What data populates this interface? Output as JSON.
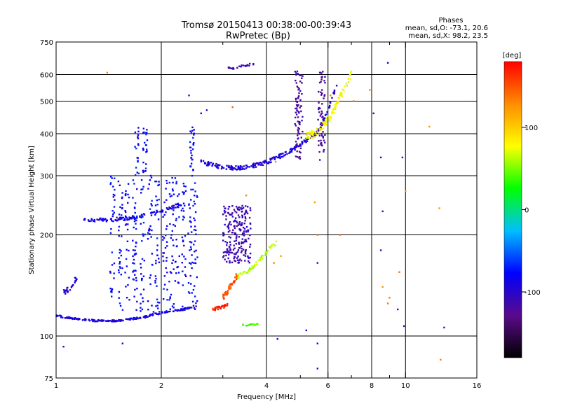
{
  "chart_data": {
    "type": "scatter",
    "title": "Tromsø 20150413 00:38:00-00:39:43",
    "subtitle": "RwPretec (Bp)",
    "phases": {
      "header": "Phases",
      "o_line": "mean, sd,O: -73.1, 20.6",
      "x_line": "mean, sd,X:  98.2, 23.5"
    },
    "xlabel": "Frequency [MHz]",
    "ylabel": "Stationary phase Virtual Height [km]",
    "x_scale": "log",
    "y_scale": "log",
    "xlim": [
      1,
      16
    ],
    "ylim": [
      75,
      750
    ],
    "x_ticks": [
      {
        "value": 1,
        "label": "1"
      },
      {
        "value": 2,
        "label": "2"
      },
      {
        "value": 4,
        "label": "4"
      },
      {
        "value": 6,
        "label": "6"
      },
      {
        "value": 8,
        "label": "8"
      },
      {
        "value": 10,
        "label": "10"
      },
      {
        "value": 16,
        "label": "16"
      }
    ],
    "x_minor": [
      3,
      5,
      7,
      9
    ],
    "x_grid": [
      2,
      4,
      6,
      8,
      10
    ],
    "y_ticks": [
      {
        "value": 75,
        "label": "75"
      },
      {
        "value": 100,
        "label": "100"
      },
      {
        "value": 200,
        "label": "200"
      },
      {
        "value": 300,
        "label": "300"
      },
      {
        "value": 400,
        "label": "400"
      },
      {
        "value": 500,
        "label": "500"
      },
      {
        "value": 600,
        "label": "600"
      },
      {
        "value": 750,
        "label": "750"
      }
    ],
    "y_grid": [
      100,
      200,
      300,
      400,
      500,
      600
    ],
    "grid": true,
    "colorbar": {
      "label": "[deg]",
      "range": [
        -180,
        180
      ],
      "ticks": [
        {
          "value": 100,
          "label": "100"
        },
        {
          "value": 0,
          "label": "0"
        },
        {
          "value": -100,
          "label": "-100"
        }
      ],
      "colors": [
        "#000000",
        "#5a0a8a",
        "#0000ff",
        "#00bfff",
        "#00ff00",
        "#ffff00",
        "#ff8c00",
        "#ff0000"
      ]
    },
    "series": [
      {
        "trace_type": "curve",
        "phase": -90,
        "points": [
          [
            1.0,
            115
          ],
          [
            1.05,
            114
          ],
          [
            1.1,
            113
          ],
          [
            1.2,
            112
          ],
          [
            1.3,
            111
          ],
          [
            1.4,
            111
          ],
          [
            1.5,
            111
          ],
          [
            1.6,
            112
          ],
          [
            1.7,
            113
          ],
          [
            1.8,
            114
          ],
          [
            1.9,
            116
          ],
          [
            2.0,
            117
          ],
          [
            2.1,
            118
          ],
          [
            2.2,
            119
          ],
          [
            2.3,
            120
          ],
          [
            2.4,
            121
          ],
          [
            2.5,
            123
          ]
        ],
        "count": 190,
        "jitter_y": 0.006
      },
      {
        "trace_type": "curve",
        "phase": -90,
        "points": [
          [
            1.2,
            222
          ],
          [
            1.3,
            221
          ],
          [
            1.4,
            222
          ],
          [
            1.5,
            223
          ],
          [
            1.6,
            224
          ],
          [
            1.7,
            226
          ],
          [
            1.8,
            229
          ],
          [
            1.9,
            232
          ],
          [
            2.0,
            235
          ],
          [
            2.1,
            240
          ],
          [
            2.2,
            244
          ],
          [
            2.3,
            246
          ]
        ],
        "count": 110,
        "jitter_y": 0.012
      },
      {
        "trace_type": "vertical",
        "phase": -80,
        "x": [
          1.45,
          1.53,
          1.6,
          1.68,
          1.77,
          1.86,
          1.95,
          2.05,
          2.14,
          2.22,
          2.32,
          2.42,
          2.5
        ],
        "ylim": [
          118,
          300
        ],
        "count": 420
      },
      {
        "trace_type": "vertical",
        "phase": -80,
        "x": [
          1.7,
          1.8,
          2.45
        ],
        "ylim": [
          300,
          420
        ],
        "count": 70
      },
      {
        "trace_type": "curve",
        "phase": -95,
        "points": [
          [
            1.05,
            135
          ],
          [
            1.1,
            140
          ],
          [
            1.15,
            150
          ]
        ],
        "count": 25,
        "jitter_y": 0.02
      },
      {
        "trace_type": "curve",
        "phase": -95,
        "points": [
          [
            2.6,
            330
          ],
          [
            2.8,
            323
          ],
          [
            3.0,
            318
          ],
          [
            3.3,
            316
          ],
          [
            3.6,
            320
          ],
          [
            3.9,
            326
          ],
          [
            4.2,
            336
          ],
          [
            4.5,
            348
          ],
          [
            4.8,
            360
          ],
          [
            5.0,
            372
          ],
          [
            5.3,
            388
          ],
          [
            5.6,
            405
          ],
          [
            5.8,
            430
          ],
          [
            6.0,
            470
          ],
          [
            6.2,
            520
          ],
          [
            6.4,
            560
          ]
        ],
        "count": 240,
        "jitter_y": 0.014
      },
      {
        "trace_type": "curve",
        "phase": 80,
        "points": [
          [
            5.2,
            395
          ],
          [
            5.5,
            400
          ],
          [
            5.7,
            415
          ],
          [
            6.0,
            440
          ],
          [
            6.3,
            480
          ],
          [
            6.6,
            530
          ],
          [
            6.8,
            570
          ],
          [
            7.0,
            600
          ]
        ],
        "count": 110,
        "jitter_y": 0.025
      },
      {
        "trace_type": "vertical",
        "phase": -110,
        "x": [
          3.05,
          3.15,
          3.25,
          3.35,
          3.45,
          3.55
        ],
        "ylim": [
          165,
          245
        ],
        "count": 220
      },
      {
        "trace_type": "curve",
        "phase": 170,
        "points": [
          [
            2.8,
            120
          ],
          [
            2.9,
            121
          ],
          [
            3.0,
            122
          ],
          [
            3.1,
            124
          ]
        ],
        "count": 35,
        "jitter_y": 0.01
      },
      {
        "trace_type": "curve",
        "phase": 150,
        "points": [
          [
            3.0,
            130
          ],
          [
            3.1,
            136
          ],
          [
            3.2,
            144
          ],
          [
            3.3,
            152
          ]
        ],
        "count": 50,
        "jitter_y": 0.02
      },
      {
        "trace_type": "curve",
        "phase": 60,
        "points": [
          [
            3.3,
            150
          ],
          [
            3.5,
            155
          ],
          [
            3.7,
            162
          ],
          [
            3.9,
            172
          ],
          [
            4.1,
            183
          ],
          [
            4.3,
            190
          ]
        ],
        "count": 55,
        "jitter_y": 0.015
      },
      {
        "trace_type": "curve",
        "phase": 40,
        "points": [
          [
            3.4,
            108
          ],
          [
            3.6,
            108
          ],
          [
            3.8,
            108
          ]
        ],
        "count": 15,
        "jitter_y": 0.006
      },
      {
        "trace_type": "vertical",
        "phase": -120,
        "x": [
          4.9,
          5.0,
          5.7,
          5.8
        ],
        "ylim": [
          330,
          620
        ],
        "count": 140
      },
      {
        "trace_type": "curve",
        "phase": -110,
        "points": [
          [
            3.1,
            625
          ],
          [
            3.3,
            630
          ],
          [
            3.5,
            640
          ],
          [
            3.7,
            645
          ]
        ],
        "count": 22,
        "jitter_y": 0.008
      },
      {
        "trace_type": "scatter",
        "phase": 130,
        "points": [
          [
            1.4,
            608
          ],
          [
            4.25,
            330
          ],
          [
            5.5,
            250
          ],
          [
            5.6,
            200
          ],
          [
            6.5,
            200
          ],
          [
            6.1,
            520
          ],
          [
            7.1,
            500
          ],
          [
            7.9,
            540
          ],
          [
            8.6,
            140
          ],
          [
            8.9,
            125
          ],
          [
            9.0,
            130
          ],
          [
            9.6,
            155
          ],
          [
            11.7,
            420
          ],
          [
            12.5,
            240
          ],
          [
            12.6,
            85
          ],
          [
            10.0,
            270
          ],
          [
            3.2,
            480
          ],
          [
            3.5,
            262
          ],
          [
            4.2,
            165
          ],
          [
            4.4,
            173
          ]
        ],
        "count": 0
      },
      {
        "trace_type": "scatter",
        "phase": -105,
        "points": [
          [
            1.05,
            93
          ],
          [
            1.55,
            95
          ],
          [
            1.9,
            118
          ],
          [
            2.4,
            520
          ],
          [
            2.6,
            460
          ],
          [
            2.7,
            470
          ],
          [
            4.3,
            98
          ],
          [
            5.2,
            104
          ],
          [
            5.6,
            95
          ],
          [
            5.6,
            80
          ],
          [
            5.6,
            165
          ],
          [
            8.1,
            460
          ],
          [
            8.5,
            340
          ],
          [
            8.6,
            235
          ],
          [
            8.9,
            650
          ],
          [
            9.5,
            120
          ],
          [
            9.9,
            107
          ],
          [
            12.9,
            106
          ],
          [
            8.5,
            180
          ],
          [
            9.8,
            340
          ]
        ],
        "count": 0
      }
    ]
  }
}
